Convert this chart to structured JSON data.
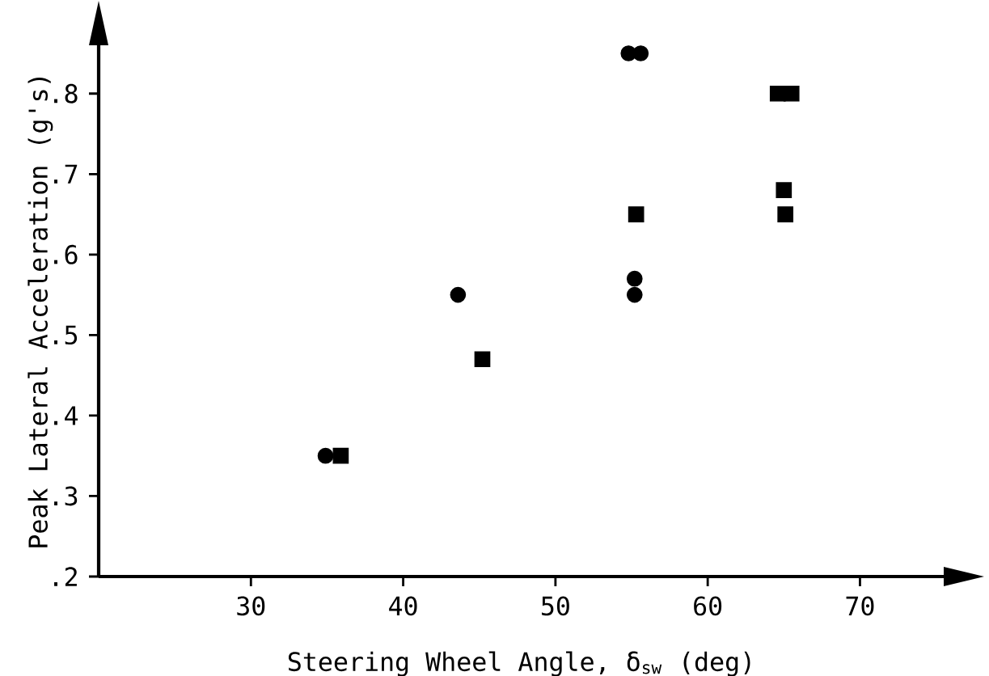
{
  "chart_data": {
    "type": "scatter",
    "xlabel": "Steering Wheel Angle, δ$_{sw}$ (deg)",
    "ylabel": "Peak Lateral Acceleration (g's)",
    "xlim": [
      20,
      75.5
    ],
    "ylim": [
      0.2,
      0.86
    ],
    "xticks": [
      30,
      40,
      50,
      60,
      70
    ],
    "yticks": [
      {
        "value": 0.2,
        "label": ".2"
      },
      {
        "value": 0.3,
        "label": ".3"
      },
      {
        "value": 0.4,
        "label": ".4"
      },
      {
        "value": 0.5,
        "label": ".5"
      },
      {
        "value": 0.6,
        "label": ".6"
      },
      {
        "value": 0.7,
        "label": ".7"
      },
      {
        "value": 0.8,
        "label": ".8"
      }
    ],
    "grid": false,
    "series": [
      {
        "color": "#000000",
        "marker": "circle",
        "x": [
          34.9,
          43.6,
          54.8,
          55.6,
          55.2,
          55.2
        ],
        "values": [
          0.35,
          0.55,
          0.85,
          0.85,
          0.57,
          0.55
        ]
      },
      {
        "color": "#000000",
        "marker": "square",
        "x": [
          35.9,
          45.2,
          55.3,
          64.6,
          65.5,
          65.0,
          65.1
        ],
        "values": [
          0.35,
          0.47,
          0.65,
          0.8,
          0.8,
          0.68,
          0.65
        ]
      }
    ]
  }
}
